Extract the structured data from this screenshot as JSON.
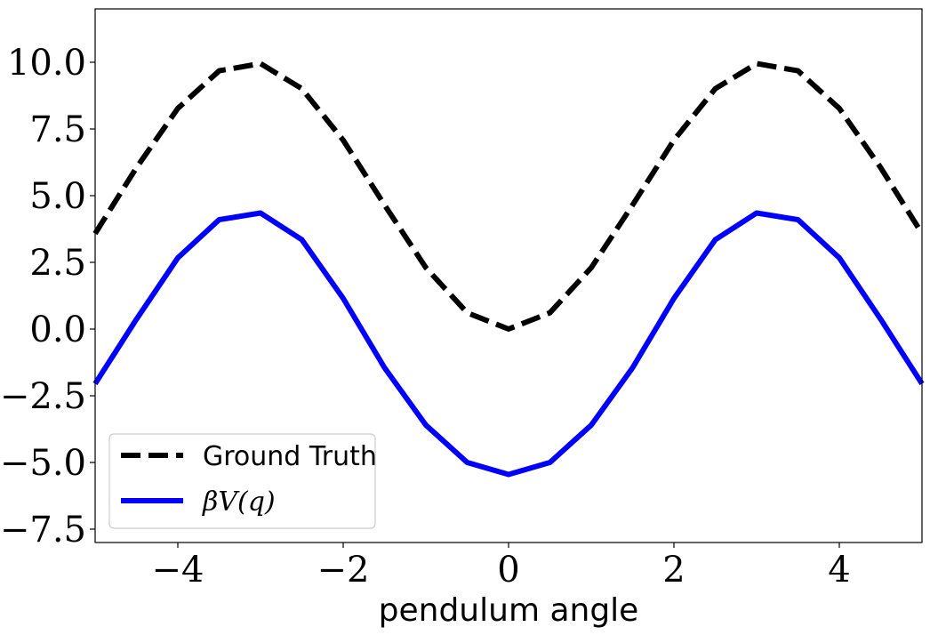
{
  "chart_data": {
    "type": "line",
    "xlabel": "pendulum angle",
    "ylabel": "",
    "title": "",
    "xlim": [
      -5,
      5
    ],
    "ylim": [
      -8,
      12
    ],
    "x_ticks": [
      -4,
      -2,
      0,
      2,
      4
    ],
    "x_tick_labels": [
      "−4",
      "−2",
      "0",
      "2",
      "4"
    ],
    "y_ticks": [
      10.0,
      7.5,
      5.0,
      2.5,
      0.0,
      -2.5,
      -5.0,
      -7.5
    ],
    "y_tick_labels": [
      "10.0",
      "7.5",
      "5.0",
      "2.5",
      "0.0",
      "−2.5",
      "−5.0",
      "−7.5"
    ],
    "grid": false,
    "legend_position": "bottom-left",
    "x": [
      -5.0,
      -4.5,
      -4.0,
      -3.5,
      -3.0,
      -2.5,
      -2.0,
      -1.5,
      -1.0,
      -0.5,
      0.0,
      0.5,
      1.0,
      1.5,
      2.0,
      2.5,
      3.0,
      3.5,
      4.0,
      4.5,
      5.0
    ],
    "series": [
      {
        "name": "Ground Truth",
        "color": "#000000",
        "style": "dashed",
        "values": [
          3.58,
          6.05,
          8.27,
          9.68,
          9.95,
          9.01,
          7.08,
          4.65,
          2.3,
          0.61,
          0.0,
          0.61,
          2.3,
          4.65,
          7.08,
          9.01,
          9.95,
          9.68,
          8.27,
          6.05,
          3.58
        ]
      },
      {
        "name": "βV(q)",
        "color": "#0000ff",
        "style": "solid",
        "values": [
          -2.05,
          0.37,
          2.67,
          4.1,
          4.35,
          3.35,
          1.15,
          -1.45,
          -3.6,
          -5.0,
          -5.45,
          -5.0,
          -3.6,
          -1.45,
          1.15,
          3.35,
          4.35,
          4.1,
          2.67,
          0.37,
          -2.05
        ]
      }
    ]
  }
}
